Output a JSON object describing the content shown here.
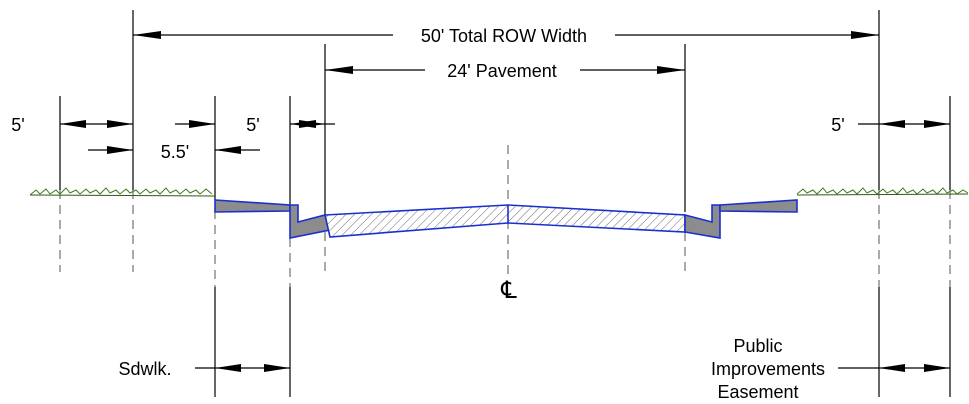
{
  "diagram": {
    "labels": {
      "total_row": "50' Total ROW Width",
      "pavement": "24' Pavement",
      "left_5": "5'",
      "mid_5_5": "5.5'",
      "mid_5": "5'",
      "right_5": "5'",
      "centerline": "℄",
      "sidewalk": "Sdwlk.",
      "easement_line1": "Public",
      "easement_line2": "Improvements",
      "easement_line3": "Easement"
    },
    "colors": {
      "pavement_outline": "#1a2fd0",
      "curb_fill": "#8c8c8c",
      "grass": "#3f7a1e",
      "hatch": "#666666"
    }
  }
}
